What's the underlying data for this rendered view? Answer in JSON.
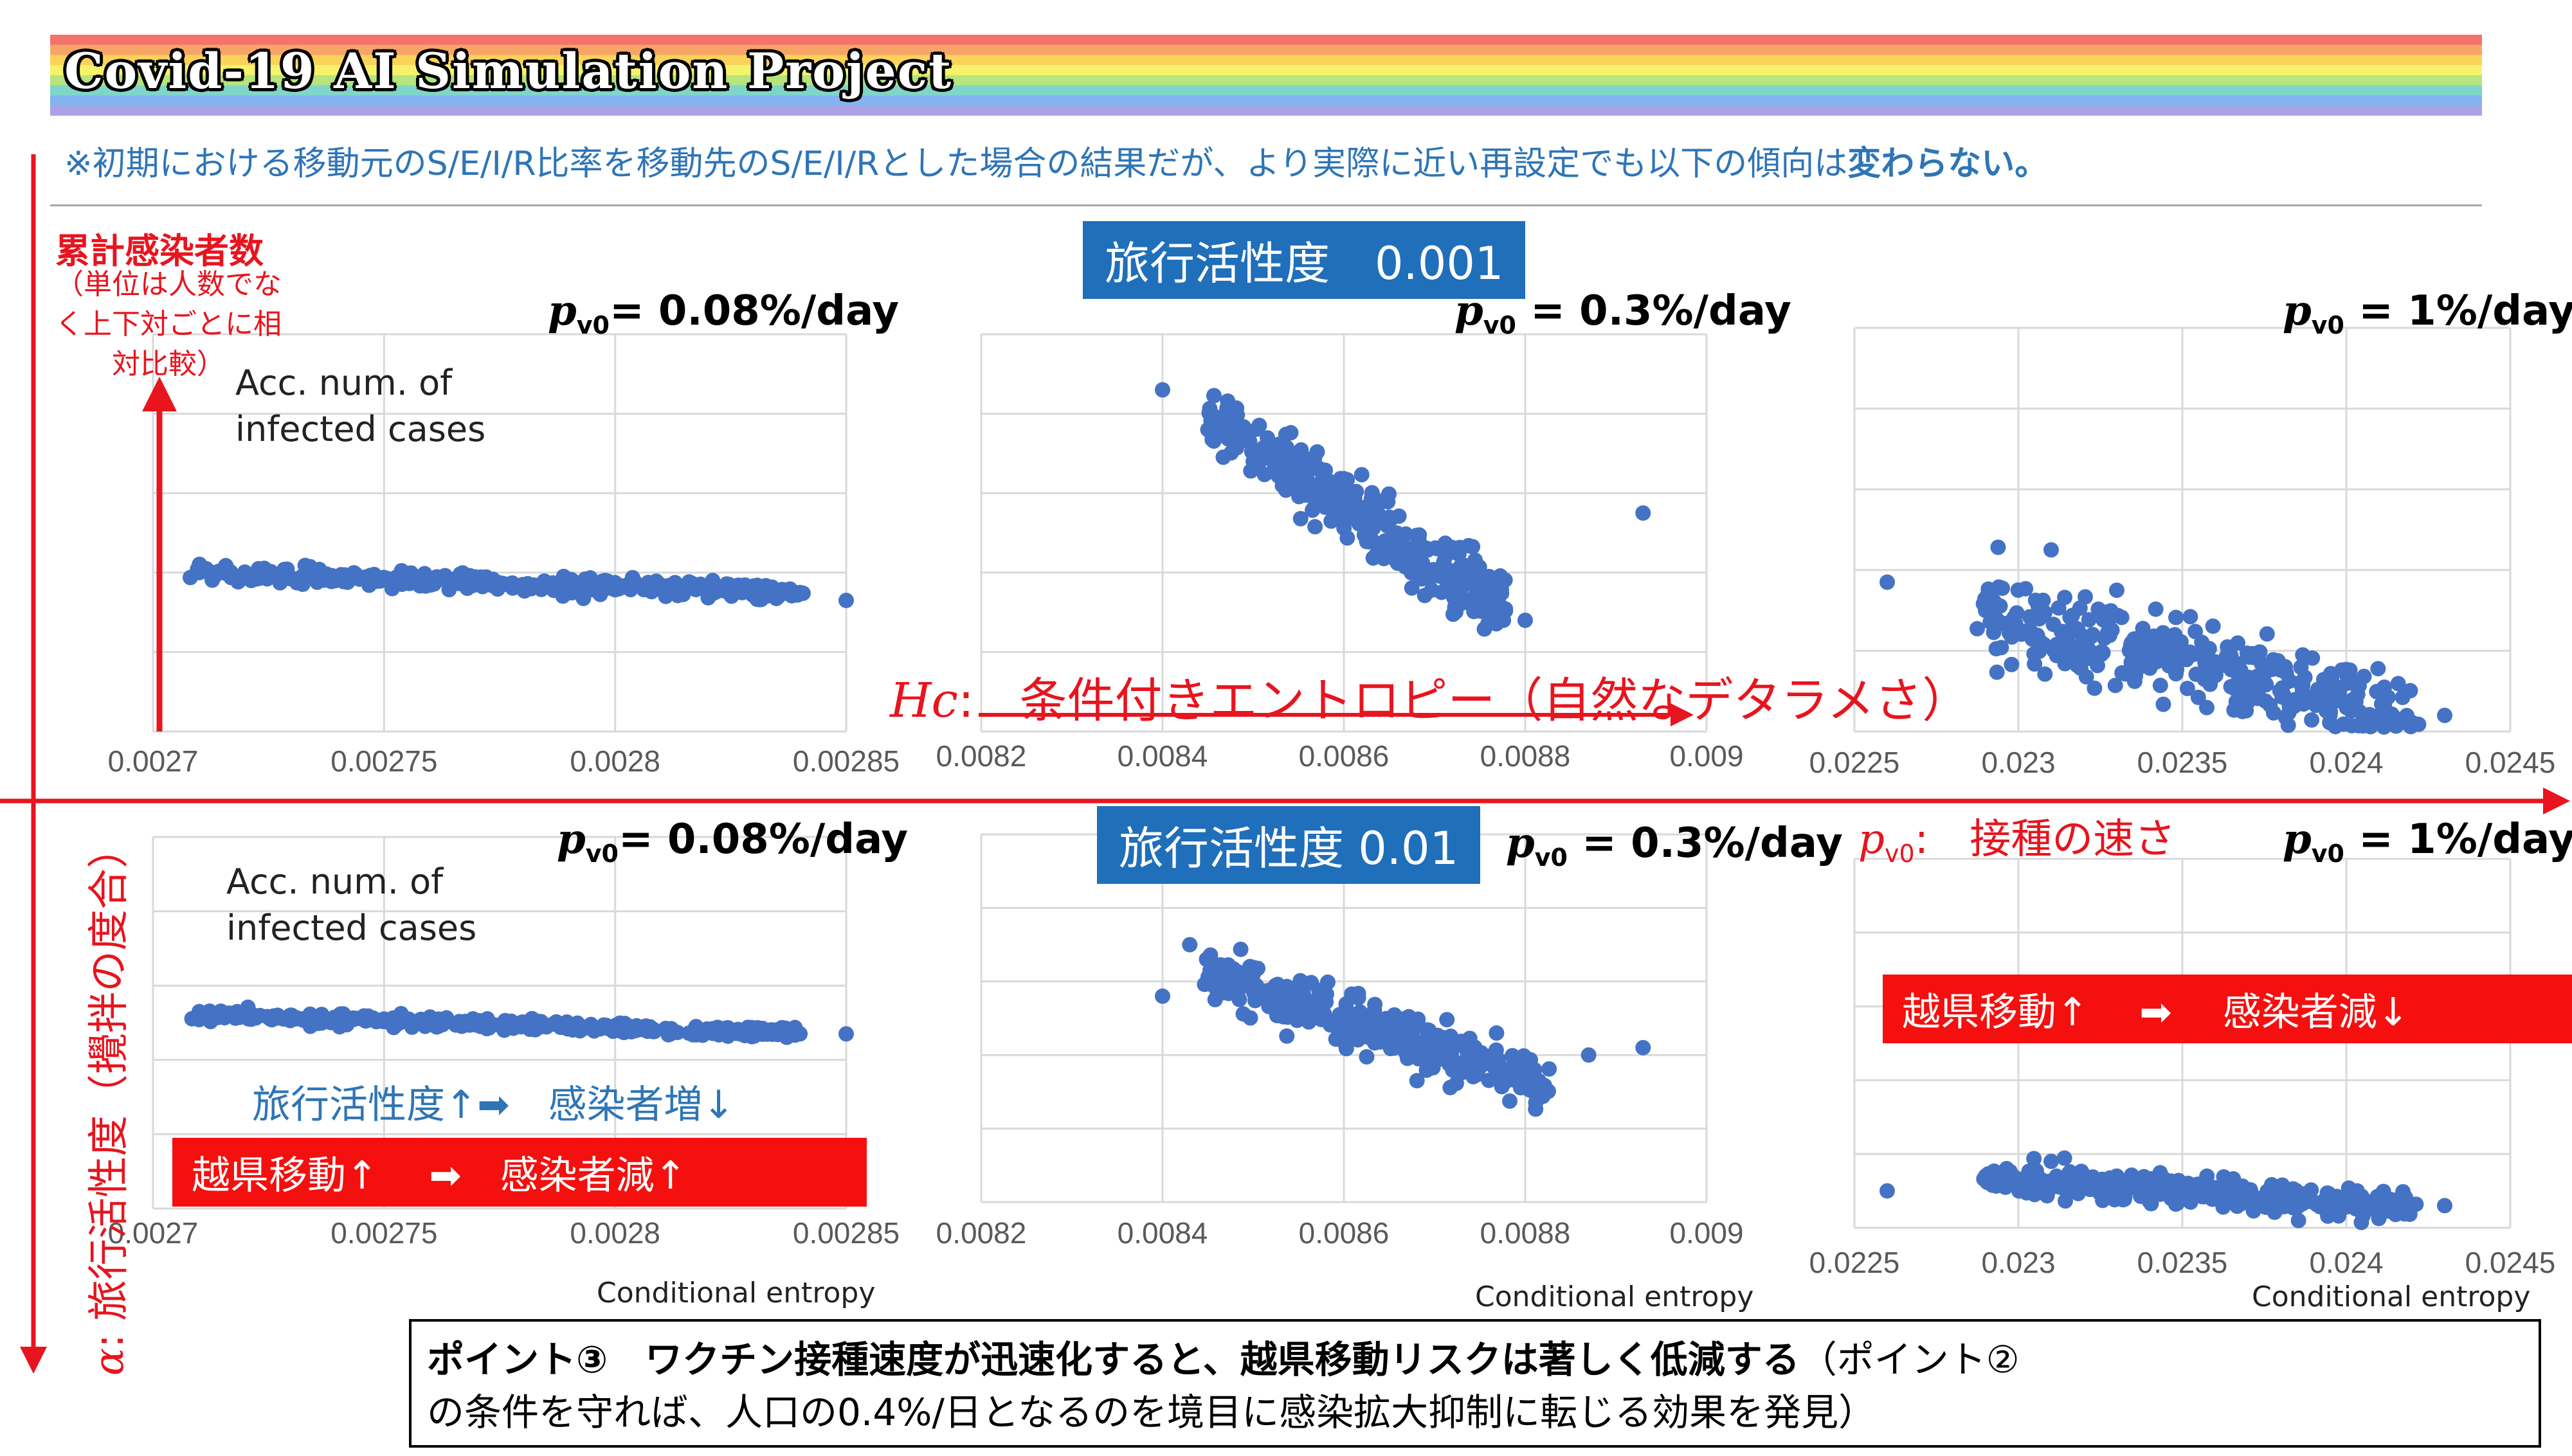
{
  "header": {
    "title": "Covid-19 AI Simulation Project",
    "note_prefix": "※初期における移動元のS/E/I/R比率を移動先のS/E/I/Rとした場合の結果だが、より実際に近い再設定でも以下の傾向は",
    "note_emphasis": "変わらない。",
    "rainbow_colors": [
      "#f4736a",
      "#f7a567",
      "#fbd25a",
      "#f5f36a",
      "#b6e47d",
      "#7fd6c8",
      "#83b4ef",
      "#a9a3e6"
    ]
  },
  "y_axis": {
    "title": "累計感染者数",
    "note": "（単位は人数でなく上下対ごとに相対比較）",
    "acc_label_top": "Acc. num. of infected cases",
    "acc_label_bottom": "Acc. num. of infected cases"
  },
  "axes": {
    "hc_symbol": "Hc",
    "hc_colon": ":",
    "hc_text": "条件付きエントロピー（自然なデタラメさ）",
    "alpha_symbol": "α",
    "alpha_text": ": 旅行活性度（攪拌の度合）",
    "pv_symbol": "p",
    "pv_sub": "v0",
    "pv_text": ":　接種の速さ",
    "x_title": "Conditional entropy"
  },
  "badges": {
    "top": "旅行活性度　0.001",
    "bottom": "旅行活性度 0.01"
  },
  "panel_labels": {
    "p_symbol": "p",
    "p_sub": "v0",
    "top_left": "= 0.08%/day",
    "top_mid": " = 0.3%/day",
    "top_right": " = 1%/day",
    "bot_left": "= 0.08%/day",
    "bot_mid": " = 0.3%/day",
    "bot_right": " = 1%/day"
  },
  "annotations": {
    "travel_up": "旅行活性度↑➡　感染者増↓",
    "box_left": "越県移動↑　 ➡　感染者減↑",
    "box_right": "越県移動↑　 ➡　 感染者減↓"
  },
  "point": {
    "bold": "ポイント③　ワクチン接種速度が迅速化すると、越県移動リスクは著しく低減する",
    "rest_line1": "（ポイント②",
    "rest_line2": "の条件を守れば、人口の0.4%/日となるのを境目に感染拡大抑制に転じる効果を発見）"
  },
  "colors": {
    "point": "#4472c4",
    "grid": "#d9d9d9",
    "red": "#e8141e",
    "badge_blue": "#1f6fba"
  },
  "chart_data": [
    {
      "type": "scatter",
      "panel": "top-left",
      "travel_activity": "0.001",
      "pv0": "0.08%/day",
      "xlim": [
        0.0027,
        0.00285
      ],
      "x_ticks": [
        "0.0027",
        "0.00275",
        "0.0028",
        "0.00285"
      ],
      "grid": true,
      "xlabel": "",
      "ylabel": "",
      "y_scale": "relative (0-1)",
      "points": [
        [
          0.00271,
          0.4
        ],
        [
          0.00272,
          0.39
        ],
        [
          0.00274,
          0.39
        ],
        [
          0.00276,
          0.38
        ],
        [
          0.00278,
          0.37
        ],
        [
          0.0028,
          0.36
        ],
        [
          0.00282,
          0.36
        ],
        [
          0.00284,
          0.35
        ],
        [
          0.00285,
          0.33
        ]
      ],
      "trend": {
        "x_start": 0.00271,
        "x_end": 0.00284,
        "y_start": 0.4,
        "y_end": 0.35,
        "spread": 0.02
      }
    },
    {
      "type": "scatter",
      "panel": "top-middle",
      "travel_activity": "0.001",
      "pv0": "0.3%/day",
      "xlim": [
        0.0082,
        0.009
      ],
      "x_ticks": [
        "0.0082",
        "0.0084",
        "0.0086",
        "0.0088",
        "0.009"
      ],
      "grid": true,
      "xlabel": "",
      "ylabel": "",
      "y_scale": "relative (0-1)",
      "points": [
        [
          0.0084,
          0.86
        ],
        [
          0.00845,
          0.76
        ],
        [
          0.0085,
          0.68
        ],
        [
          0.00855,
          0.62
        ],
        [
          0.0086,
          0.56
        ],
        [
          0.00865,
          0.48
        ],
        [
          0.0087,
          0.4
        ],
        [
          0.00875,
          0.34
        ],
        [
          0.0088,
          0.28
        ],
        [
          0.00893,
          0.55
        ]
      ],
      "trend": {
        "x_start": 0.00845,
        "x_end": 0.00878,
        "y_start": 0.8,
        "y_end": 0.3,
        "spread": 0.08
      }
    },
    {
      "type": "scatter",
      "panel": "top-right",
      "travel_activity": "0.001",
      "pv0": "1%/day",
      "xlim": [
        0.0225,
        0.0245
      ],
      "x_ticks": [
        "0.0225",
        "0.023",
        "0.0235",
        "0.024",
        "0.0245"
      ],
      "grid": true,
      "xlabel": "",
      "ylabel": "",
      "y_scale": "relative (0-1)",
      "points": [
        [
          0.0226,
          0.37
        ],
        [
          0.0229,
          0.3
        ],
        [
          0.0231,
          0.45
        ],
        [
          0.0233,
          0.35
        ],
        [
          0.0235,
          0.2
        ],
        [
          0.0237,
          0.12
        ],
        [
          0.0239,
          0.08
        ],
        [
          0.0241,
          0.04
        ],
        [
          0.0243,
          0.04
        ]
      ],
      "trend": {
        "x_start": 0.0229,
        "x_end": 0.0242,
        "y_start": 0.3,
        "y_end": 0.03,
        "spread": 0.1
      }
    },
    {
      "type": "scatter",
      "panel": "bottom-left",
      "travel_activity": "0.01",
      "pv0": "0.08%/day",
      "xlim": [
        0.0027,
        0.00285
      ],
      "x_ticks": [
        "0.0027",
        "0.00275",
        "0.0028",
        "0.00285"
      ],
      "grid": true,
      "xlabel": "Conditional entropy",
      "ylabel": "",
      "y_scale": "relative (0-1)",
      "points": [
        [
          0.00271,
          0.53
        ],
        [
          0.00273,
          0.52
        ],
        [
          0.00275,
          0.51
        ],
        [
          0.00277,
          0.5
        ],
        [
          0.0028,
          0.49
        ],
        [
          0.00282,
          0.48
        ],
        [
          0.00284,
          0.47
        ],
        [
          0.00285,
          0.47
        ]
      ],
      "trend": {
        "x_start": 0.00271,
        "x_end": 0.00284,
        "y_start": 0.52,
        "y_end": 0.47,
        "spread": 0.015
      }
    },
    {
      "type": "scatter",
      "panel": "bottom-middle",
      "travel_activity": "0.01",
      "pv0": "0.3%/day",
      "xlim": [
        0.0082,
        0.009
      ],
      "x_ticks": [
        "0.0082",
        "0.0084",
        "0.0086",
        "0.0088",
        "0.009"
      ],
      "grid": true,
      "xlabel": "Conditional entropy",
      "ylabel": "",
      "y_scale": "relative (0-1)",
      "points": [
        [
          0.00843,
          0.7
        ],
        [
          0.0084,
          0.56
        ],
        [
          0.0085,
          0.62
        ],
        [
          0.00855,
          0.55
        ],
        [
          0.0086,
          0.5
        ],
        [
          0.00866,
          0.45
        ],
        [
          0.00872,
          0.38
        ],
        [
          0.00878,
          0.33
        ],
        [
          0.00887,
          0.4
        ],
        [
          0.00893,
          0.42
        ]
      ],
      "trend": {
        "x_start": 0.00845,
        "x_end": 0.00882,
        "y_start": 0.62,
        "y_end": 0.32,
        "spread": 0.07
      }
    },
    {
      "type": "scatter",
      "panel": "bottom-right",
      "travel_activity": "0.01",
      "pv0": "1%/day",
      "xlim": [
        0.0225,
        0.0245
      ],
      "x_ticks": [
        "0.0225",
        "0.023",
        "0.0235",
        "0.024",
        "0.0245"
      ],
      "grid": true,
      "xlabel": "Conditional entropy",
      "ylabel": "",
      "y_scale": "relative (0-1)",
      "points": [
        [
          0.0226,
          0.1
        ],
        [
          0.0229,
          0.14
        ],
        [
          0.0231,
          0.18
        ],
        [
          0.0233,
          0.14
        ],
        [
          0.0235,
          0.1
        ],
        [
          0.0237,
          0.09
        ],
        [
          0.0239,
          0.07
        ],
        [
          0.0241,
          0.06
        ],
        [
          0.0243,
          0.06
        ]
      ],
      "trend": {
        "x_start": 0.0229,
        "x_end": 0.0242,
        "y_start": 0.13,
        "y_end": 0.06,
        "spread": 0.04
      }
    }
  ]
}
